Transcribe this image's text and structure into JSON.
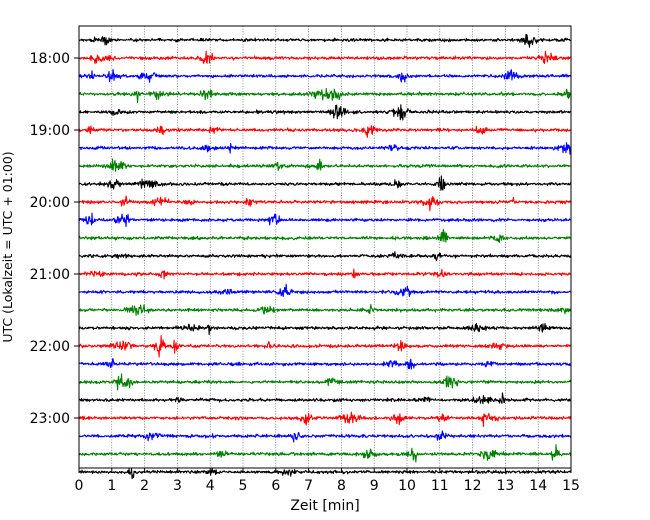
{
  "chart_data": {
    "type": "line",
    "title": "",
    "xlabel": "Zeit  [min]",
    "ylabel": "UTC (Lokalzeit = UTC + 01:00)",
    "xlim": [
      0,
      15
    ],
    "x_ticks": [
      "0",
      "1",
      "2",
      "3",
      "4",
      "5",
      "6",
      "7",
      "8",
      "9",
      "10",
      "11",
      "12",
      "13",
      "14",
      "15"
    ],
    "y_tick_labels": [
      "18:00",
      "19:00",
      "20:00",
      "21:00",
      "22:00",
      "23:00"
    ],
    "grid": "vertical dotted lines at each minute",
    "traces_per_hour": 4,
    "trace_minutes": 15,
    "trace_start_times": [
      "17:45",
      "18:00",
      "18:15",
      "18:30",
      "18:45",
      "19:00",
      "19:15",
      "19:30",
      "19:45",
      "20:00",
      "20:15",
      "20:30",
      "20:45",
      "21:00",
      "21:15",
      "21:30",
      "21:45",
      "22:00",
      "22:15",
      "22:30",
      "22:45",
      "23:00",
      "23:15",
      "23:30",
      "23:45"
    ],
    "colors": [
      "#000000",
      "#ff0000",
      "#0000ff",
      "#008000"
    ],
    "seed": 7
  }
}
